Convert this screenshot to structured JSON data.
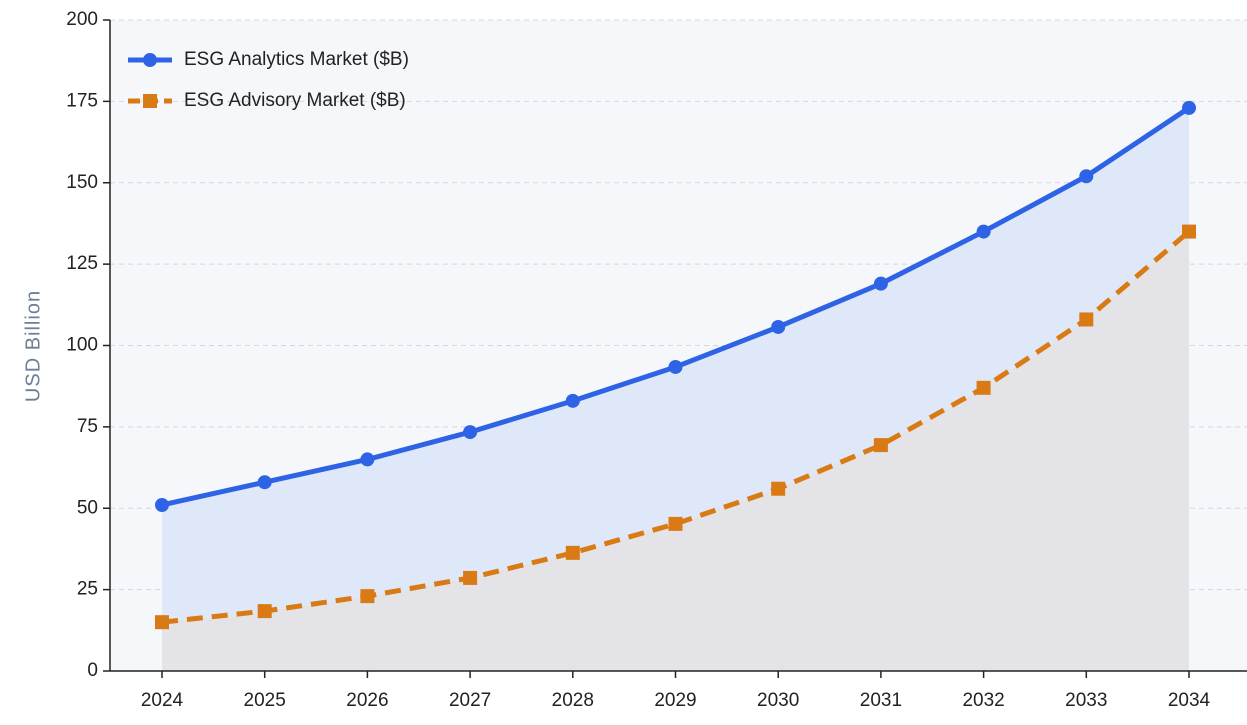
{
  "chart_data": {
    "type": "line",
    "y_label": "USD Billion",
    "categories": [
      "2024",
      "2025",
      "2026",
      "2027",
      "2028",
      "2029",
      "2030",
      "2031",
      "2032",
      "2033",
      "2034"
    ],
    "series": [
      {
        "name": "ESG Analytics Market ($B)",
        "color": "#2f63e6",
        "marker": "circle",
        "dash": false,
        "fill": "#dde6f8",
        "values": [
          51,
          58,
          65,
          73.4,
          83,
          93.4,
          105.7,
          119,
          135,
          152,
          173
        ]
      },
      {
        "name": "ESG Advisory Market ($B)",
        "color": "#d97a14",
        "marker": "square",
        "dash": true,
        "fill": "#e4e3e6",
        "values": [
          15,
          18.4,
          23,
          28.6,
          36.3,
          45.2,
          56,
          69.4,
          87,
          108,
          135
        ]
      }
    ],
    "ylim": [
      0,
      200
    ],
    "yticks": [
      0,
      25,
      50,
      75,
      100,
      125,
      150,
      175,
      200
    ],
    "grid": true,
    "legend": "upper left"
  }
}
